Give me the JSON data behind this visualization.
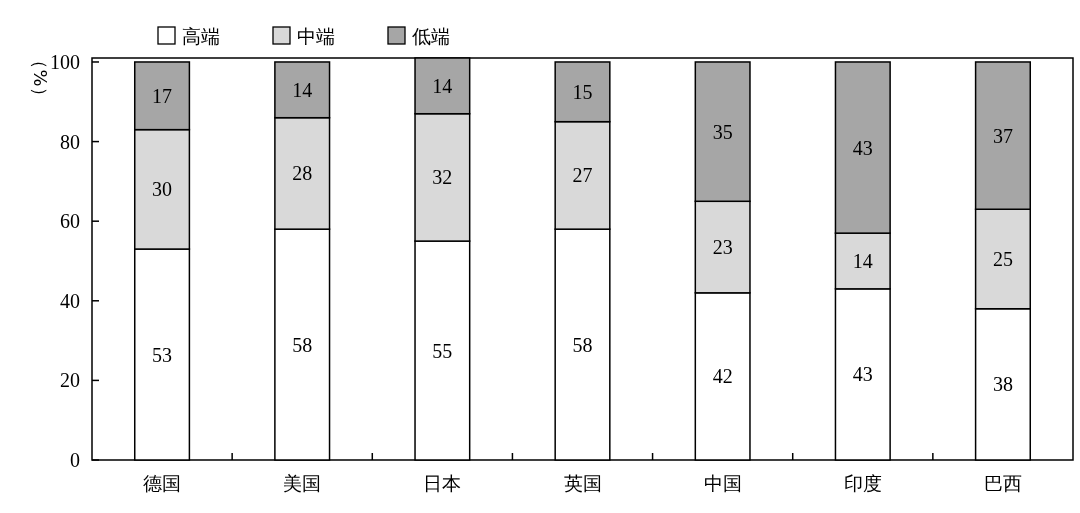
{
  "chart_data": {
    "type": "bar",
    "stacked": true,
    "categories": [
      "德国",
      "美国",
      "日本",
      "英国",
      "中国",
      "印度",
      "巴西"
    ],
    "series": [
      {
        "name": "高端",
        "color": "#ffffff",
        "values": [
          53,
          58,
          55,
          58,
          42,
          43,
          38
        ]
      },
      {
        "name": "中端",
        "color": "#d9d9d9",
        "values": [
          30,
          28,
          32,
          27,
          23,
          14,
          25
        ]
      },
      {
        "name": "低端",
        "color": "#a6a6a6",
        "values": [
          17,
          14,
          14,
          15,
          35,
          43,
          37
        ]
      }
    ],
    "ylabel": "（%）",
    "ylim": [
      0,
      101
    ],
    "yticks": [
      0,
      20,
      40,
      60,
      80,
      100
    ],
    "data_labels": true,
    "legend": "top"
  }
}
